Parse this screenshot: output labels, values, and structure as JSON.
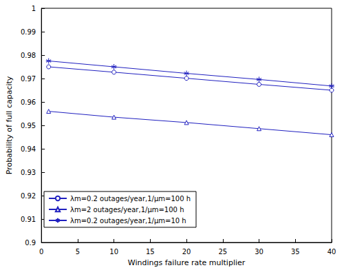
{
  "chart_data": {
    "type": "line",
    "x_label": "Windings failure rate multiplier",
    "y_label": "Probability of full capacity",
    "xlim": [
      0,
      40
    ],
    "xticks": [
      0,
      5,
      10,
      15,
      20,
      25,
      30,
      35,
      40
    ],
    "ylim": [
      0.9,
      1
    ],
    "yticks": [
      0.9,
      0.91,
      0.92,
      0.93,
      0.94,
      0.95,
      0.96,
      0.97,
      0.98,
      0.99,
      1
    ],
    "grid": false,
    "legend": "lower left",
    "series": [
      {
        "name": "λm=0.2 outages/year,1/μm=100 h",
        "color": "#2020c0",
        "marker": "circle",
        "x": [
          1,
          10,
          20,
          30,
          40
        ],
        "values": [
          0.975,
          0.9727,
          0.9701,
          0.9675,
          0.965
        ]
      },
      {
        "name": "λm=2 outages/year,1/μm=100 h",
        "color": "#2020c0",
        "marker": "triangle",
        "x": [
          1,
          10,
          20,
          30,
          40
        ],
        "values": [
          0.956,
          0.9535,
          0.9512,
          0.9486,
          0.946
        ]
      },
      {
        "name": "λm=0.2 outages/year,1/μm=10 h",
        "color": "#2020c0",
        "marker": "star",
        "x": [
          1,
          10,
          20,
          30,
          40
        ],
        "values": [
          0.9775,
          0.975,
          0.9722,
          0.9696,
          0.9668
        ]
      }
    ]
  }
}
